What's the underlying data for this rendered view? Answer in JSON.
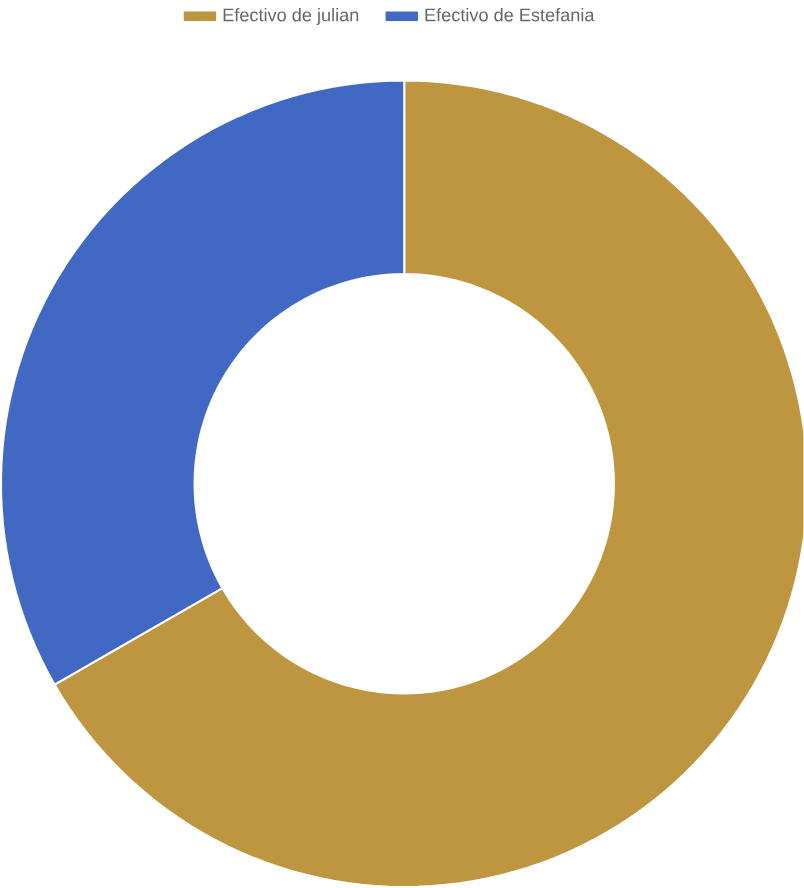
{
  "chart_data": {
    "type": "donut",
    "categories": [
      "Efectivo de julian",
      "Efectivo de Estefania"
    ],
    "values": [
      66.7,
      33.3
    ],
    "colors": [
      "#bf9640",
      "#4169c4"
    ],
    "legend": "top"
  }
}
